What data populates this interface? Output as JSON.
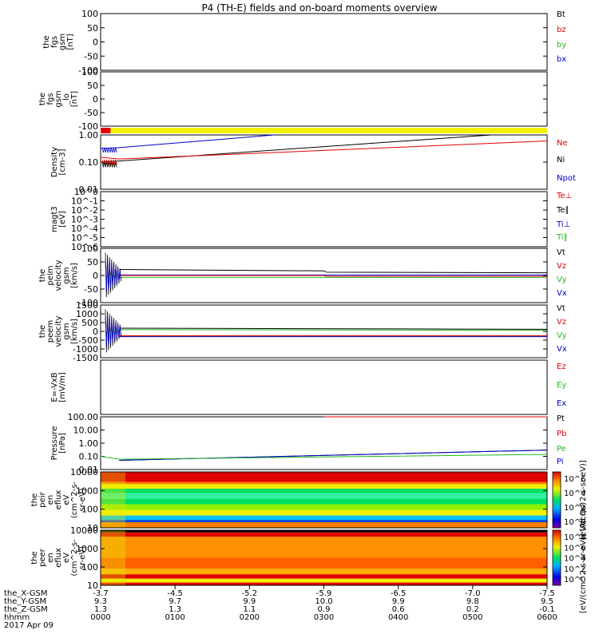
{
  "title": "P4 (TH-E) fields and on-board moments overview",
  "colors": {
    "black": "#000000",
    "red": "#e00000",
    "green": "#22bb22",
    "blue": "#0000cc",
    "yellow": "#f2f200"
  },
  "chart_data": [
    {
      "type": "line",
      "ylabel": [
        "the",
        "fgs",
        "gsm",
        "[nT]"
      ],
      "yticks": [
        "100",
        "50",
        "0",
        "-50",
        "-100"
      ],
      "ylim": [
        -100,
        100
      ],
      "legend": [
        {
          "name": "Bt",
          "color": "#000000"
        },
        {
          "name": "bz",
          "color": "#e00000"
        },
        {
          "name": "by",
          "color": "#22bb22"
        },
        {
          "name": "bx",
          "color": "#0000cc"
        }
      ],
      "series": []
    },
    {
      "type": "line",
      "ylabel": [
        "the",
        "fgs",
        "gsm",
        "_lo",
        "[nT]"
      ],
      "yticks": [
        "100",
        "50",
        "0",
        "-50",
        "-100"
      ],
      "ylim": [
        -100,
        100
      ],
      "legend": [],
      "series": []
    },
    {
      "type": "bar",
      "name": "mode bar",
      "segments": [
        {
          "x": [
            0,
            8
          ],
          "color": "#e00000"
        },
        {
          "x": [
            8,
            360
          ],
          "color": "#f2f200"
        }
      ]
    },
    {
      "type": "line",
      "ylabel": [
        "Density",
        "[cm-3]"
      ],
      "yticks": [
        "1.00",
        "0.10",
        "0.01"
      ],
      "ylim": [
        0.01,
        1.0
      ],
      "scale": "log",
      "legend": [
        {
          "name": "Ne",
          "color": "#e00000"
        },
        {
          "name": "Ni",
          "color": "#000000"
        },
        {
          "name": "Npot",
          "color": "#0000cc"
        }
      ],
      "series": [
        {
          "name": "Npot",
          "color": "#0000cc",
          "x": [
            0,
            15,
            140
          ],
          "y": [
            0.32,
            0.34,
            1.0
          ]
        },
        {
          "name": "Ni",
          "color": "#000000",
          "x": [
            0,
            15,
            315
          ],
          "y": [
            0.1,
            0.11,
            1.0
          ]
        },
        {
          "name": "Ne",
          "color": "#e00000",
          "x": [
            0,
            15,
            360
          ],
          "y": [
            0.15,
            0.13,
            0.6
          ]
        }
      ]
    },
    {
      "type": "line",
      "ylabel": [
        "magt3",
        "[eV]"
      ],
      "yticks": [
        "10^0",
        "10^-1",
        "10^-2",
        "10^-3",
        "10^-4",
        "10^-5",
        "10^-6"
      ],
      "ylim": [
        1e-06,
        1
      ],
      "scale": "log",
      "legend": [
        {
          "name": "Te⊥",
          "color": "#e00000"
        },
        {
          "name": "Te∥",
          "color": "#000000"
        },
        {
          "name": "Ti⊥",
          "color": "#0000cc"
        },
        {
          "name": "Ti∥",
          "color": "#22bb22"
        }
      ],
      "series": []
    },
    {
      "type": "line",
      "ylabel": [
        "the",
        "peim",
        "velocity",
        "gsm",
        "[km/s]"
      ],
      "yticks": [
        "100",
        "50",
        "0",
        "-50",
        "-100"
      ],
      "ylim": [
        -100,
        100
      ],
      "legend": [
        {
          "name": "Vt",
          "color": "#000000"
        },
        {
          "name": "Vz",
          "color": "#e00000"
        },
        {
          "name": "Vy",
          "color": "#22bb22"
        },
        {
          "name": "Vx",
          "color": "#0000cc"
        }
      ],
      "series": [
        {
          "name": "Vt",
          "color": "#000000",
          "x": [
            15,
            180,
            182,
            360
          ],
          "y": [
            22,
            17,
            12,
            10
          ]
        },
        {
          "name": "Vx",
          "color": "#0000cc",
          "x": [
            15,
            360
          ],
          "y": [
            2,
            2
          ]
        },
        {
          "name": "Vz",
          "color": "#e00000",
          "x": [
            15,
            180,
            182,
            360
          ],
          "y": [
            0,
            0,
            -3,
            -3
          ]
        },
        {
          "name": "Vy",
          "color": "#22bb22",
          "x": [
            15,
            360
          ],
          "y": [
            -7,
            -7
          ]
        }
      ]
    },
    {
      "type": "line",
      "ylabel": [
        "the",
        "peem",
        "velocity",
        "gsm",
        "[km/s]"
      ],
      "yticks": [
        "1500",
        "1000",
        "500",
        "0",
        "-500",
        "-1000",
        "-1500"
      ],
      "ylim": [
        -1500,
        1500
      ],
      "legend": [
        {
          "name": "Vt",
          "color": "#000000"
        },
        {
          "name": "Vz",
          "color": "#e00000"
        },
        {
          "name": "Vy",
          "color": "#22bb22"
        },
        {
          "name": "Vx",
          "color": "#0000cc"
        }
      ],
      "series": [
        {
          "name": "Vt",
          "color": "#000000",
          "x": [
            15,
            200,
            290,
            360
          ],
          "y": [
            180,
            150,
            130,
            120
          ]
        },
        {
          "name": "Vy",
          "color": "#22bb22",
          "x": [
            15,
            200,
            290,
            360
          ],
          "y": [
            100,
            80,
            70,
            60
          ]
        },
        {
          "name": "Vz",
          "color": "#e00000",
          "x": [
            15,
            360
          ],
          "y": [
            -250,
            -250
          ]
        },
        {
          "name": "Vx",
          "color": "#0000cc",
          "x": [
            15,
            360
          ],
          "y": [
            -300,
            -300
          ]
        }
      ]
    },
    {
      "type": "line",
      "ylabel": [
        "E=-VxB",
        "[mV/m]"
      ],
      "yticks": [],
      "legend": [
        {
          "name": "Ez",
          "color": "#e00000"
        },
        {
          "name": "Ey",
          "color": "#22bb22"
        },
        {
          "name": "Ex",
          "color": "#0000cc"
        }
      ],
      "series": []
    },
    {
      "type": "line",
      "ylabel": [
        "Pressure",
        "[nPa]"
      ],
      "yticks": [
        "100.00",
        "10.00",
        "1.00",
        "0.10",
        "0.01"
      ],
      "ylim": [
        0.01,
        100
      ],
      "scale": "log",
      "legend": [
        {
          "name": "Pt",
          "color": "#000000"
        },
        {
          "name": "Pb",
          "color": "#e00000"
        },
        {
          "name": "Pe",
          "color": "#22bb22"
        },
        {
          "name": "Pi",
          "color": "#0000cc"
        }
      ],
      "series": [
        {
          "name": "Pb",
          "color": "#e00000",
          "x": [
            180,
            360
          ],
          "y": [
            100,
            100
          ]
        },
        {
          "name": "Pt",
          "color": "#000000",
          "x": [
            15,
            360
          ],
          "y": [
            0.05,
            0.3
          ]
        },
        {
          "name": "Pi",
          "color": "#0000cc",
          "x": [
            15,
            360
          ],
          "y": [
            0.05,
            0.3
          ]
        },
        {
          "name": "Pe",
          "color": "#22bb22",
          "x": [
            0,
            15,
            360
          ],
          "y": [
            0.1,
            0.06,
            0.14
          ]
        }
      ]
    },
    {
      "type": "heatmap",
      "ylabel": [
        "the",
        "peir",
        "en",
        "eflux",
        "eV",
        "(cm^2-s-",
        "sr-eV)"
      ],
      "yticks": [
        "10000",
        "1000",
        "100",
        "10"
      ],
      "ylim": [
        5,
        20000
      ],
      "scale": "log",
      "colorbar": {
        "ticks": [
          "10^6",
          "10^4",
          "10^2",
          "10^0"
        ],
        "label": "[eV/(cm^2-s-sr-eV)]"
      }
    },
    {
      "type": "heatmap",
      "ylabel": [
        "the",
        "peer",
        "en",
        "eflux",
        "eV",
        "(cm^2-s-",
        "sr-eV)"
      ],
      "yticks": [
        "10000",
        "1000",
        "100",
        "10"
      ],
      "ylim": [
        5,
        20000
      ],
      "scale": "log",
      "colorbar": {
        "ticks": [
          "10^8",
          "10^6",
          "10^4",
          "10^2",
          "10^0"
        ],
        "label": "[eV/(cm^2-s-sr-eV)] (All Qs)"
      }
    }
  ],
  "xaxis": {
    "ticks_min": [
      0,
      60,
      120,
      180,
      240,
      300,
      360
    ],
    "rows": [
      {
        "label": "the_X-GSM",
        "values": [
          "-3.7",
          "-4.5",
          "-5.2",
          "-5.9",
          "-6.5",
          "-7.0",
          "-7.5"
        ]
      },
      {
        "label": "the_Y-GSM",
        "values": [
          "9.3",
          "9.7",
          "9.9",
          "10.0",
          "9.9",
          "9.8",
          "9.5"
        ]
      },
      {
        "label": "the_Z-GSM",
        "values": [
          "1.3",
          "1.3",
          "1.1",
          "0.9",
          "0.6",
          "0.2",
          "-0.1"
        ]
      },
      {
        "label": "hhmm",
        "values": [
          "0000",
          "0100",
          "0200",
          "0300",
          "0400",
          "0500",
          "0600"
        ]
      }
    ],
    "date": "2017 Apr 09"
  }
}
